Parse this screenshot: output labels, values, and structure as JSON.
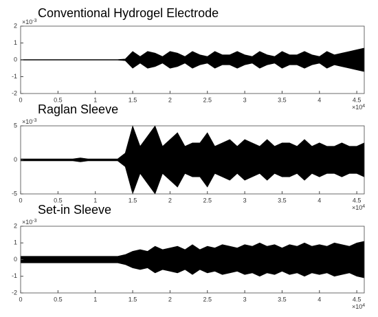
{
  "chart_data": [
    {
      "type": "envelope",
      "title": "Conventional Hydrogel Electrode",
      "color": "#000000",
      "x": [
        0,
        0.1,
        0.2,
        0.3,
        0.4,
        0.5,
        0.6,
        0.7,
        0.8,
        0.9,
        1,
        1.1,
        1.2,
        1.3,
        1.4,
        1.5,
        1.6,
        1.7,
        1.8,
        1.9,
        2,
        2.1,
        2.2,
        2.3,
        2.4,
        2.5,
        2.6,
        2.7,
        2.8,
        2.9,
        3,
        3.1,
        3.2,
        3.3,
        3.4,
        3.5,
        3.6,
        3.7,
        3.8,
        3.9,
        4,
        4.1,
        4.2,
        4.3,
        4.4,
        4.5,
        4.6
      ],
      "values": [
        0.02,
        0.02,
        0.02,
        0.02,
        0.02,
        0.02,
        0.02,
        0.02,
        0.02,
        0.02,
        0.02,
        0.02,
        0.02,
        0.02,
        0.05,
        0.5,
        0.2,
        0.5,
        0.4,
        0.2,
        0.5,
        0.4,
        0.2,
        0.5,
        0.3,
        0.2,
        0.5,
        0.3,
        0.3,
        0.5,
        0.3,
        0.2,
        0.5,
        0.3,
        0.2,
        0.5,
        0.3,
        0.3,
        0.5,
        0.3,
        0.2,
        0.5,
        0.3,
        0.4,
        0.5,
        0.6,
        0.7
      ],
      "xlim": [
        0,
        4.6
      ],
      "ylim": [
        -2,
        2
      ],
      "xticks": [
        0,
        0.5,
        1,
        1.5,
        2,
        2.5,
        3,
        3.5,
        4,
        4.5
      ],
      "yticks": [
        2,
        1,
        0,
        -1,
        -2
      ],
      "x_scale": {
        "base": "×10",
        "power": "4"
      },
      "y_scale": {
        "base": "×10",
        "power": "-3"
      }
    },
    {
      "type": "envelope",
      "title": "Raglan Sleeve",
      "color": "#000000",
      "x": [
        0,
        0.1,
        0.2,
        0.3,
        0.4,
        0.5,
        0.6,
        0.7,
        0.8,
        0.9,
        1,
        1.1,
        1.2,
        1.3,
        1.4,
        1.5,
        1.6,
        1.7,
        1.8,
        1.9,
        2,
        2.1,
        2.2,
        2.3,
        2.4,
        2.5,
        2.6,
        2.7,
        2.8,
        2.9,
        3,
        3.1,
        3.2,
        3.3,
        3.4,
        3.5,
        3.6,
        3.7,
        3.8,
        3.9,
        4,
        4.1,
        4.2,
        4.3,
        4.4,
        4.5,
        4.6
      ],
      "values": [
        0.15,
        0.15,
        0.15,
        0.15,
        0.15,
        0.15,
        0.15,
        0.15,
        0.3,
        0.15,
        0.15,
        0.15,
        0.15,
        0.15,
        1,
        5,
        2,
        3.5,
        5,
        2,
        3,
        4,
        2,
        2.5,
        2.5,
        4,
        2,
        2.5,
        3,
        2,
        3,
        2.5,
        2,
        3,
        2,
        2.5,
        2.5,
        2,
        3,
        2,
        2.5,
        2,
        2,
        2.5,
        2,
        2,
        2.5
      ],
      "xlim": [
        0,
        4.6
      ],
      "ylim": [
        -5,
        5
      ],
      "xticks": [
        0,
        0.5,
        1,
        1.5,
        2,
        2.5,
        3,
        3.5,
        4,
        4.5
      ],
      "yticks": [
        5,
        0,
        -5
      ],
      "x_scale": {
        "base": "×10",
        "power": "4"
      },
      "y_scale": {
        "base": "×10",
        "power": "-3"
      }
    },
    {
      "type": "envelope",
      "title": "Set-in Sleeve",
      "color": "#000000",
      "x": [
        0,
        0.1,
        0.2,
        0.3,
        0.4,
        0.5,
        0.6,
        0.7,
        0.8,
        0.9,
        1,
        1.1,
        1.2,
        1.3,
        1.4,
        1.5,
        1.6,
        1.7,
        1.8,
        1.9,
        2,
        2.1,
        2.2,
        2.3,
        2.4,
        2.5,
        2.6,
        2.7,
        2.8,
        2.9,
        3,
        3.1,
        3.2,
        3.3,
        3.4,
        3.5,
        3.6,
        3.7,
        3.8,
        3.9,
        4,
        4.1,
        4.2,
        4.3,
        4.4,
        4.5,
        4.6
      ],
      "values": [
        0.2,
        0.2,
        0.2,
        0.2,
        0.2,
        0.2,
        0.2,
        0.2,
        0.2,
        0.2,
        0.2,
        0.2,
        0.2,
        0.2,
        0.3,
        0.5,
        0.6,
        0.5,
        0.8,
        0.6,
        0.7,
        0.8,
        0.6,
        0.9,
        0.6,
        0.8,
        0.7,
        0.9,
        0.8,
        0.7,
        0.9,
        0.8,
        1,
        0.8,
        0.9,
        0.7,
        0.9,
        0.8,
        1,
        0.8,
        0.9,
        0.8,
        1,
        0.9,
        0.8,
        1,
        1.1
      ],
      "xlim": [
        0,
        4.6
      ],
      "ylim": [
        -2,
        2
      ],
      "xticks": [
        0,
        0.5,
        1,
        1.5,
        2,
        2.5,
        3,
        3.5,
        4,
        4.5
      ],
      "yticks": [
        2,
        1,
        0,
        -1,
        -2
      ],
      "x_scale": {
        "base": "×10",
        "power": "4"
      },
      "y_scale": {
        "base": "×10",
        "power": "-3"
      }
    }
  ]
}
